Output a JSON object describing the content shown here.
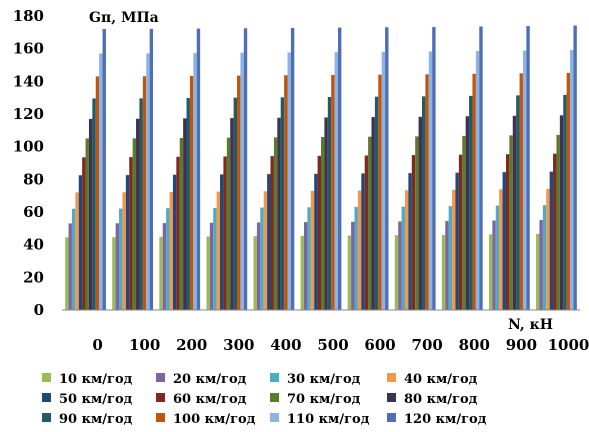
{
  "chart_data": {
    "type": "bar",
    "ylabel": "Gп, МПа",
    "xlabel": "N, кН",
    "ylim": [
      0,
      180
    ],
    "yticks": [
      "0",
      "20",
      "40",
      "60",
      "80",
      "100",
      "120",
      "140",
      "160",
      "180"
    ],
    "categories": [
      "0",
      "100",
      "200",
      "300",
      "400",
      "500",
      "600",
      "700",
      "800",
      "900",
      "1000"
    ],
    "grid": false,
    "legend_position": "bottom",
    "series": [
      {
        "name": "10 км/год",
        "color": "#9bbb59",
        "values": [
          44.5,
          44.6,
          44.8,
          45.0,
          45.2,
          45.4,
          45.6,
          45.8,
          46.0,
          46.3,
          46.6
        ]
      },
      {
        "name": "20 км/год",
        "color": "#8064a2",
        "values": [
          53.0,
          53.1,
          53.2,
          53.4,
          53.6,
          53.8,
          54.0,
          54.2,
          54.5,
          54.8,
          55.1
        ]
      },
      {
        "name": "30 км/год",
        "color": "#4bacc6",
        "values": [
          62.0,
          62.1,
          62.3,
          62.5,
          62.7,
          62.9,
          63.1,
          63.3,
          63.6,
          63.9,
          64.2
        ]
      },
      {
        "name": "40 км/год",
        "color": "#f79646",
        "values": [
          72.0,
          72.1,
          72.3,
          72.5,
          72.7,
          72.9,
          73.1,
          73.3,
          73.6,
          73.9,
          74.2
        ]
      },
      {
        "name": "50 км/год",
        "color": "#1f497d",
        "values": [
          82.5,
          82.6,
          82.8,
          83.0,
          83.2,
          83.4,
          83.6,
          83.8,
          84.1,
          84.4,
          84.7
        ]
      },
      {
        "name": "60 км/год",
        "color": "#7f2a1e",
        "values": [
          93.5,
          93.6,
          93.8,
          94.0,
          94.2,
          94.4,
          94.6,
          94.8,
          95.1,
          95.4,
          95.7
        ]
      },
      {
        "name": "70 км/год",
        "color": "#5c7a29",
        "values": [
          105.0,
          105.1,
          105.3,
          105.5,
          105.7,
          105.9,
          106.1,
          106.3,
          106.6,
          106.9,
          107.2
        ]
      },
      {
        "name": "80 км/год",
        "color": "#3f3151",
        "values": [
          117.0,
          117.1,
          117.3,
          117.5,
          117.7,
          117.9,
          118.1,
          118.3,
          118.6,
          118.9,
          119.2
        ]
      },
      {
        "name": "90 км/год",
        "color": "#215a69",
        "values": [
          129.5,
          129.6,
          129.8,
          130.0,
          130.2,
          130.4,
          130.6,
          130.8,
          131.1,
          131.4,
          131.7
        ]
      },
      {
        "name": "100 км/год",
        "color": "#c0560b",
        "values": [
          143.0,
          143.1,
          143.3,
          143.5,
          143.7,
          143.9,
          144.1,
          144.3,
          144.6,
          144.9,
          145.2
        ]
      },
      {
        "name": "110 км/год",
        "color": "#8db3e2",
        "values": [
          157.0,
          157.1,
          157.3,
          157.5,
          157.7,
          157.9,
          158.1,
          158.3,
          158.6,
          158.9,
          159.2
        ]
      },
      {
        "name": "120 км/год",
        "color": "#4f6fb5",
        "values": [
          172.0,
          172.1,
          172.3,
          172.5,
          172.7,
          172.9,
          173.1,
          173.3,
          173.6,
          173.9,
          174.2
        ]
      }
    ]
  }
}
